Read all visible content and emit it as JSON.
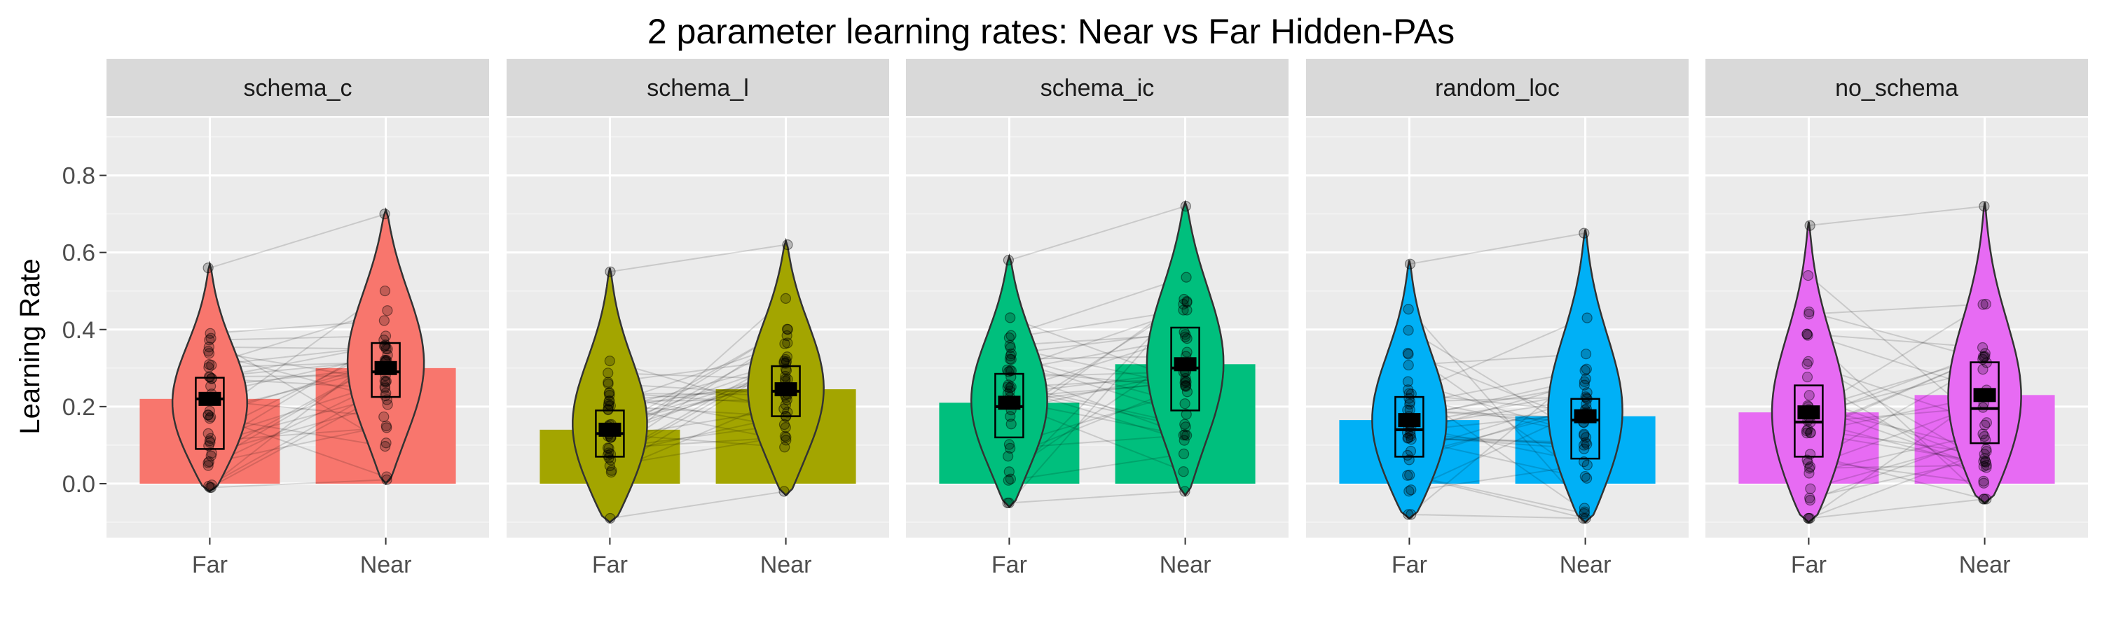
{
  "chart_data": {
    "type": "bar",
    "title": "2 parameter learning rates: Near vs Far Hidden-PAs",
    "ylabel": "Learning Rate",
    "xlabel": "",
    "ylim": [
      -0.14,
      0.95
    ],
    "yticks": [
      0.0,
      0.2,
      0.4,
      0.6,
      0.8
    ],
    "ytick_labels": [
      "0.0",
      "0.2",
      "0.4",
      "0.6",
      "0.8"
    ],
    "categories": [
      "Far",
      "Near"
    ],
    "grid": true,
    "legend": "none",
    "overlays": [
      "violin",
      "boxplot",
      "jittered points",
      "paired lines"
    ],
    "panels": [
      {
        "name": "schema_c",
        "color": "#F8766D",
        "bars": [
          0.22,
          0.3
        ],
        "violin": [
          {
            "min": -0.02,
            "max": 0.57,
            "mode": 0.19
          },
          {
            "min": 0.0,
            "max": 0.71,
            "mode": 0.3
          }
        ],
        "box": [
          {
            "q1": 0.09,
            "median": 0.22,
            "q3": 0.275,
            "mean": 0.22
          },
          {
            "q1": 0.225,
            "median": 0.29,
            "q3": 0.365,
            "mean": 0.3
          }
        ]
      },
      {
        "name": "schema_l",
        "color": "#A3A500",
        "bars": [
          0.14,
          0.245
        ],
        "violin": [
          {
            "min": -0.1,
            "max": 0.56,
            "mode": 0.13
          },
          {
            "min": -0.03,
            "max": 0.63,
            "mode": 0.23
          }
        ],
        "box": [
          {
            "q1": 0.07,
            "median": 0.13,
            "q3": 0.19,
            "mean": 0.14
          },
          {
            "q1": 0.175,
            "median": 0.24,
            "q3": 0.305,
            "mean": 0.245
          }
        ]
      },
      {
        "name": "schema_ic",
        "color": "#00BF7D",
        "bars": [
          0.21,
          0.31
        ],
        "violin": [
          {
            "min": -0.06,
            "max": 0.59,
            "mode": 0.2
          },
          {
            "min": -0.03,
            "max": 0.73,
            "mode": 0.3
          }
        ],
        "box": [
          {
            "q1": 0.12,
            "median": 0.2,
            "q3": 0.285,
            "mean": 0.21
          },
          {
            "q1": 0.19,
            "median": 0.3,
            "q3": 0.405,
            "mean": 0.31
          }
        ]
      },
      {
        "name": "random_loc",
        "color": "#00B0F6",
        "bars": [
          0.165,
          0.175
        ],
        "violin": [
          {
            "min": -0.09,
            "max": 0.58,
            "mode": 0.14
          },
          {
            "min": -0.1,
            "max": 0.66,
            "mode": 0.16
          }
        ],
        "box": [
          {
            "q1": 0.07,
            "median": 0.14,
            "q3": 0.225,
            "mean": 0.165
          },
          {
            "q1": 0.065,
            "median": 0.165,
            "q3": 0.22,
            "mean": 0.175
          }
        ]
      },
      {
        "name": "no_schema",
        "color": "#E76BF3",
        "bars": [
          0.185,
          0.23
        ],
        "violin": [
          {
            "min": -0.1,
            "max": 0.68,
            "mode": 0.15
          },
          {
            "min": -0.05,
            "max": 0.73,
            "mode": 0.19
          }
        ],
        "box": [
          {
            "q1": 0.07,
            "median": 0.16,
            "q3": 0.255,
            "mean": 0.185
          },
          {
            "q1": 0.105,
            "median": 0.195,
            "q3": 0.315,
            "mean": 0.23
          }
        ]
      }
    ]
  }
}
